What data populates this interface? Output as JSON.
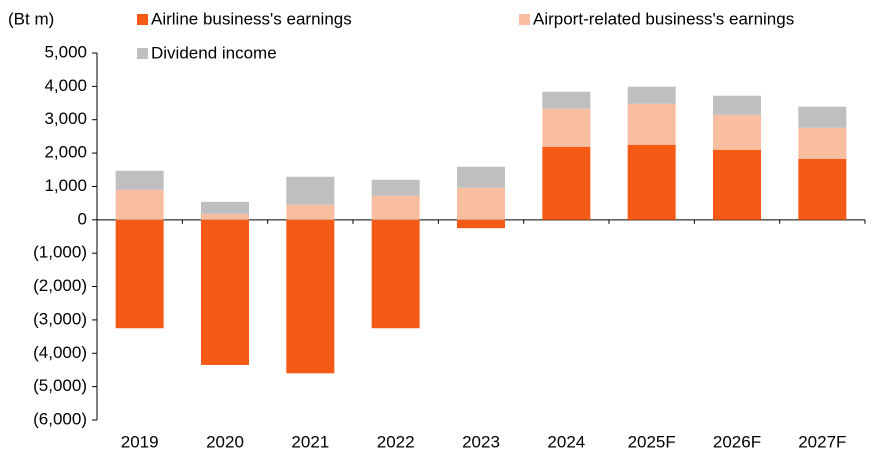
{
  "chart_data": {
    "type": "stacked_bar",
    "y_label": "(Bt m)",
    "categories": [
      "2019",
      "2020",
      "2021",
      "2022",
      "2023",
      "2024",
      "2025F",
      "2026F",
      "2027F"
    ],
    "series": [
      {
        "name": "Airline business's earnings",
        "color": "#f55a14",
        "values": [
          -3250,
          -4350,
          -4600,
          -3250,
          -250,
          2190,
          2250,
          2100,
          1830
        ]
      },
      {
        "name": "Airport-related business's earnings",
        "color": "#f9bda0",
        "values": [
          900,
          180,
          450,
          720,
          960,
          1140,
          1230,
          1050,
          930
        ]
      },
      {
        "name": "Dividend income",
        "color": "#bfbfbf",
        "values": [
          570,
          360,
          840,
          480,
          630,
          510,
          510,
          570,
          630
        ]
      }
    ],
    "ylim": [
      -6000,
      5000
    ],
    "yticks": [
      {
        "value": 5000,
        "label": "5,000"
      },
      {
        "value": 4000,
        "label": "4,000"
      },
      {
        "value": 3000,
        "label": "3,000"
      },
      {
        "value": 2000,
        "label": "2,000"
      },
      {
        "value": 1000,
        "label": "1,000"
      },
      0,
      {
        "value": -1000,
        "label": "(1,000)"
      },
      {
        "value": -2000,
        "label": "(2,000)"
      },
      {
        "value": -3000,
        "label": "(3,000)"
      },
      {
        "value": -4000,
        "label": "(4,000)"
      },
      {
        "value": -5000,
        "label": "(5,000)"
      },
      {
        "value": -6000,
        "label": "(6,000)"
      }
    ]
  }
}
